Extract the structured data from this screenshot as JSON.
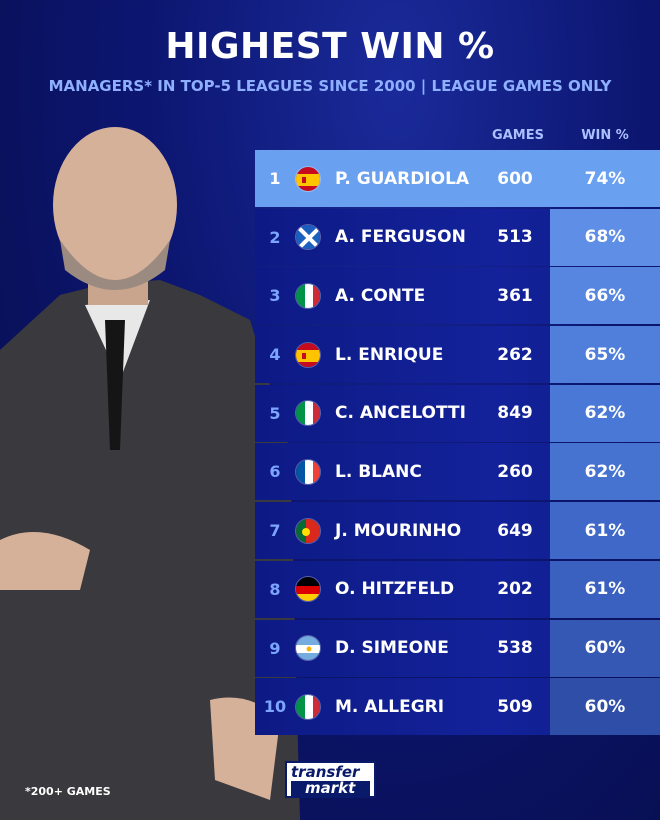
{
  "title": "HIGHEST WIN %",
  "subtitle": "MANAGERS* IN TOP-5 LEAGUES SINCE 2000 | LEAGUE GAMES ONLY",
  "columns": {
    "games": "GAMES",
    "win": "WIN %"
  },
  "rows": [
    {
      "rank": "1",
      "flag": "spain",
      "name": "P. GUARDIOLA",
      "games": "600",
      "win": "74%"
    },
    {
      "rank": "2",
      "flag": "scotland",
      "name": "A. FERGUSON",
      "games": "513",
      "win": "68%"
    },
    {
      "rank": "3",
      "flag": "italy",
      "name": "A. CONTE",
      "games": "361",
      "win": "66%"
    },
    {
      "rank": "4",
      "flag": "spain",
      "name": "L. ENRIQUE",
      "games": "262",
      "win": "65%"
    },
    {
      "rank": "5",
      "flag": "italy",
      "name": "C. ANCELOTTI",
      "games": "849",
      "win": "62%"
    },
    {
      "rank": "6",
      "flag": "france",
      "name": "L. BLANC",
      "games": "260",
      "win": "62%"
    },
    {
      "rank": "7",
      "flag": "portugal",
      "name": "J. MOURINHO",
      "games": "649",
      "win": "61%"
    },
    {
      "rank": "8",
      "flag": "germany",
      "name": "O. HITZFELD",
      "games": "202",
      "win": "61%"
    },
    {
      "rank": "9",
      "flag": "argentina",
      "name": "D. SIMEONE",
      "games": "538",
      "win": "60%"
    },
    {
      "rank": "10",
      "flag": "italy",
      "name": "M. ALLEGRI",
      "games": "509",
      "win": "60%"
    }
  ],
  "footnote": "*200+ GAMES",
  "logo": {
    "line1": "transfer",
    "line2": "markt"
  },
  "colors": {
    "highlight": "#6aa0f0",
    "row": "#13229a",
    "background": "#0c1670"
  }
}
